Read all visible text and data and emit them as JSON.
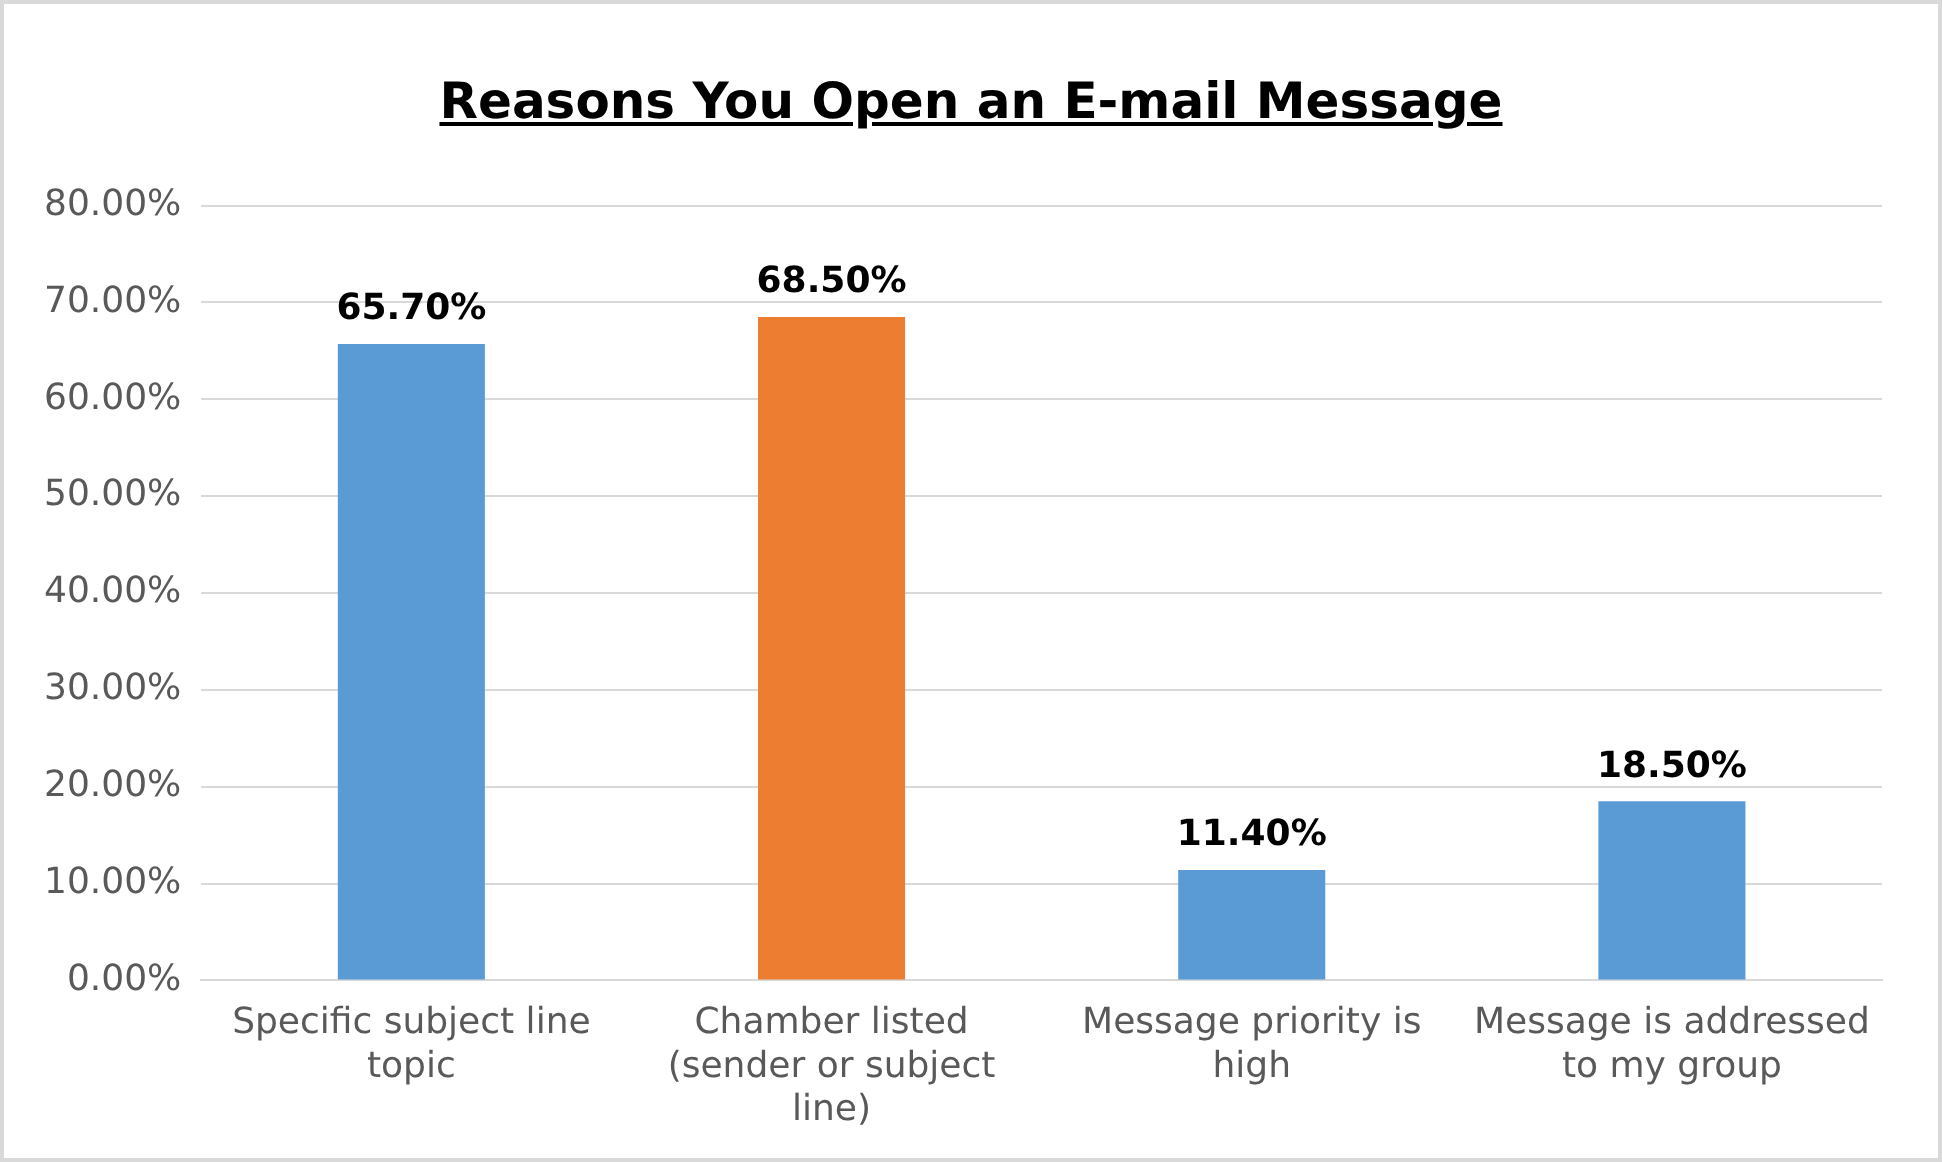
{
  "chart_data": {
    "type": "bar",
    "title": "Reasons You Open an E-mail Message",
    "categories": [
      "Specific subject line topic",
      "Chamber listed (sender or subject line)",
      "Message priority is high",
      "Message is addressed to my group"
    ],
    "values": [
      65.7,
      68.5,
      11.4,
      18.5
    ],
    "colors": [
      "#5b9bd5",
      "#ed7d31",
      "#5b9bd5",
      "#5b9bd5"
    ],
    "value_labels": [
      "65.70%",
      "68.50%",
      "11.40%",
      "18.50%"
    ],
    "ylim": [
      0,
      80
    ],
    "yticks": [
      {
        "value": 0,
        "label": "0.00%"
      },
      {
        "value": 10,
        "label": "10.00%"
      },
      {
        "value": 20,
        "label": "20.00%"
      },
      {
        "value": 30,
        "label": "30.00%"
      },
      {
        "value": 40,
        "label": "40.00%"
      },
      {
        "value": 50,
        "label": "50.00%"
      },
      {
        "value": 60,
        "label": "60.00%"
      },
      {
        "value": 70,
        "label": "70.00%"
      },
      {
        "value": 80,
        "label": "80.00%"
      }
    ],
    "grid": "y",
    "legend": false
  }
}
